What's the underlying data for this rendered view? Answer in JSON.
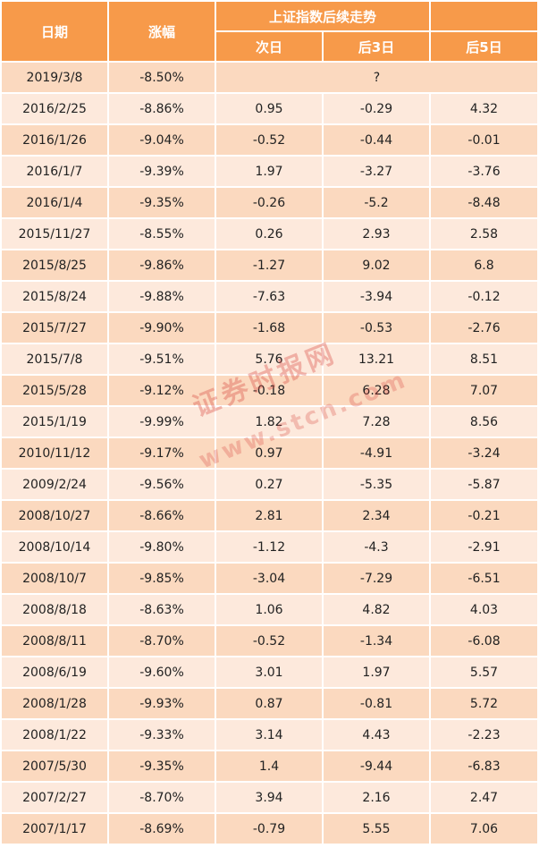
{
  "header": {
    "date": "日期",
    "change": "涨幅",
    "group": "上证指数后续走势",
    "next_day": "次日",
    "after_3": "后3日",
    "after_5": "后5日"
  },
  "highlight_row": {
    "date": "2019/3/8",
    "change": "-8.50%",
    "note": "?"
  },
  "rows": [
    {
      "date": "2016/2/25",
      "change": "-8.86%",
      "d1": "0.95",
      "d3": "-0.29",
      "d5": "4.32"
    },
    {
      "date": "2016/1/26",
      "change": "-9.04%",
      "d1": "-0.52",
      "d3": "-0.44",
      "d5": "-0.01"
    },
    {
      "date": "2016/1/7",
      "change": "-9.39%",
      "d1": "1.97",
      "d3": "-3.27",
      "d5": "-3.76"
    },
    {
      "date": "2016/1/4",
      "change": "-9.35%",
      "d1": "-0.26",
      "d3": "-5.2",
      "d5": "-8.48"
    },
    {
      "date": "2015/11/27",
      "change": "-8.55%",
      "d1": "0.26",
      "d3": "2.93",
      "d5": "2.58"
    },
    {
      "date": "2015/8/25",
      "change": "-9.86%",
      "d1": "-1.27",
      "d3": "9.02",
      "d5": "6.8"
    },
    {
      "date": "2015/8/24",
      "change": "-9.88%",
      "d1": "-7.63",
      "d3": "-3.94",
      "d5": "-0.12"
    },
    {
      "date": "2015/7/27",
      "change": "-9.90%",
      "d1": "-1.68",
      "d3": "-0.53",
      "d5": "-2.76"
    },
    {
      "date": "2015/7/8",
      "change": "-9.51%",
      "d1": "5.76",
      "d3": "13.21",
      "d5": "8.51"
    },
    {
      "date": "2015/5/28",
      "change": "-9.12%",
      "d1": "-0.18",
      "d3": "6.28",
      "d5": "7.07"
    },
    {
      "date": "2015/1/19",
      "change": "-9.99%",
      "d1": "1.82",
      "d3": "7.28",
      "d5": "8.56"
    },
    {
      "date": "2010/11/12",
      "change": "-9.17%",
      "d1": "0.97",
      "d3": "-4.91",
      "d5": "-3.24"
    },
    {
      "date": "2009/2/24",
      "change": "-9.56%",
      "d1": "0.27",
      "d3": "-5.35",
      "d5": "-5.87"
    },
    {
      "date": "2008/10/27",
      "change": "-8.66%",
      "d1": "2.81",
      "d3": "2.34",
      "d5": "-0.21"
    },
    {
      "date": "2008/10/14",
      "change": "-9.80%",
      "d1": "-1.12",
      "d3": "-4.3",
      "d5": "-2.91"
    },
    {
      "date": "2008/10/7",
      "change": "-9.85%",
      "d1": "-3.04",
      "d3": "-7.29",
      "d5": "-6.51"
    },
    {
      "date": "2008/8/18",
      "change": "-8.63%",
      "d1": "1.06",
      "d3": "4.82",
      "d5": "4.03"
    },
    {
      "date": "2008/8/11",
      "change": "-8.70%",
      "d1": "-0.52",
      "d3": "-1.34",
      "d5": "-6.08"
    },
    {
      "date": "2008/6/19",
      "change": "-9.60%",
      "d1": "3.01",
      "d3": "1.97",
      "d5": "5.57"
    },
    {
      "date": "2008/1/28",
      "change": "-9.93%",
      "d1": "0.87",
      "d3": "-0.81",
      "d5": "5.72"
    },
    {
      "date": "2008/1/22",
      "change": "-9.33%",
      "d1": "3.14",
      "d3": "4.43",
      "d5": "-2.23"
    },
    {
      "date": "2007/5/30",
      "change": "-9.35%",
      "d1": "1.4",
      "d3": "-9.44",
      "d5": "-6.83"
    },
    {
      "date": "2007/2/27",
      "change": "-8.70%",
      "d1": "3.94",
      "d3": "2.16",
      "d5": "2.47"
    },
    {
      "date": "2007/1/17",
      "change": "-8.69%",
      "d1": "-0.79",
      "d3": "5.55",
      "d5": "7.06"
    }
  ],
  "watermark": {
    "line1": "证券时报网",
    "line2": "www.stcn.com"
  }
}
